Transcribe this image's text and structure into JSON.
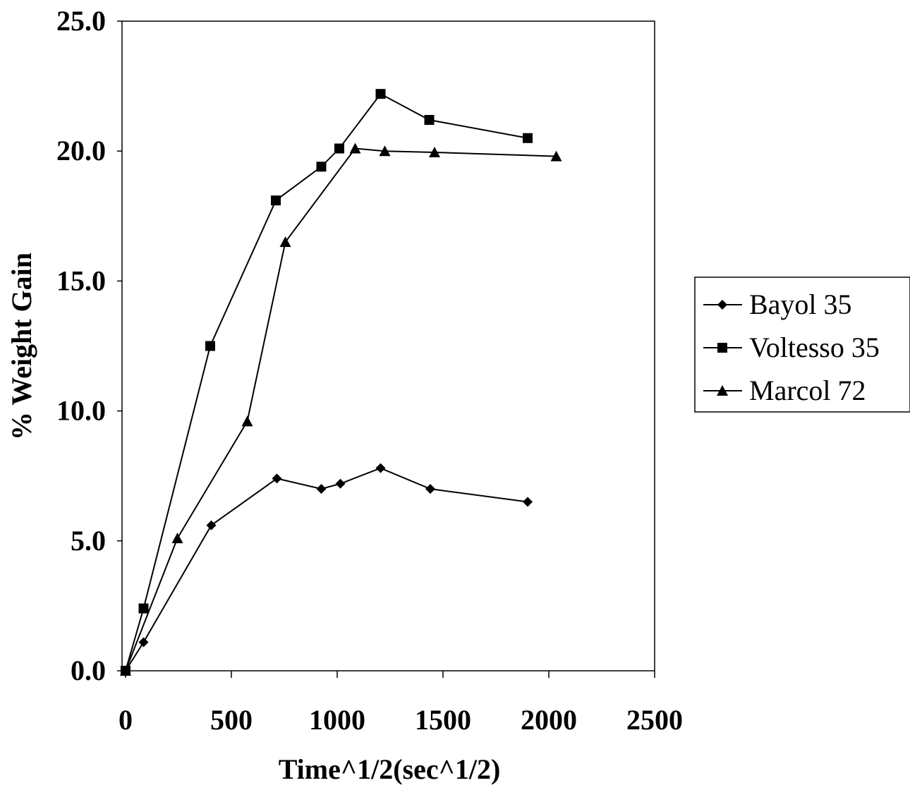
{
  "chart_data": {
    "type": "line",
    "title": "",
    "xlabel": "Time^1/2(sec^1/2)",
    "ylabel": "% Weight Gain",
    "xlim": [
      0,
      2500
    ],
    "ylim": [
      0,
      25
    ],
    "x_ticks": [
      "0",
      "500",
      "1000",
      "1500",
      "2000",
      "2500"
    ],
    "y_ticks": [
      "0.0",
      "5.0",
      "10.0",
      "15.0",
      "20.0",
      "25.0"
    ],
    "grid": false,
    "legend_position": "right",
    "series": [
      {
        "name": "Bayol 35",
        "marker": "diamond",
        "color": "#000000",
        "points": [
          [
            0,
            0.0
          ],
          [
            85,
            1.1
          ],
          [
            405,
            5.6
          ],
          [
            715,
            7.4
          ],
          [
            925,
            7.0
          ],
          [
            1015,
            7.2
          ],
          [
            1205,
            7.8
          ],
          [
            1440,
            7.0
          ],
          [
            1900,
            6.5
          ]
        ]
      },
      {
        "name": "Voltesso 35",
        "marker": "square",
        "color": "#000000",
        "points": [
          [
            0,
            0.0
          ],
          [
            85,
            2.4
          ],
          [
            400,
            12.5
          ],
          [
            710,
            18.1
          ],
          [
            925,
            19.4
          ],
          [
            1010,
            20.1
          ],
          [
            1205,
            22.2
          ],
          [
            1435,
            21.2
          ],
          [
            1900,
            20.5
          ]
        ]
      },
      {
        "name": "Marcol 72",
        "marker": "triangle",
        "color": "#000000",
        "points": [
          [
            0,
            0.0
          ],
          [
            245,
            5.1
          ],
          [
            575,
            9.6
          ],
          [
            755,
            16.5
          ],
          [
            1085,
            20.1
          ],
          [
            1225,
            20.0
          ],
          [
            1460,
            19.95
          ],
          [
            2035,
            19.8
          ]
        ]
      }
    ]
  }
}
